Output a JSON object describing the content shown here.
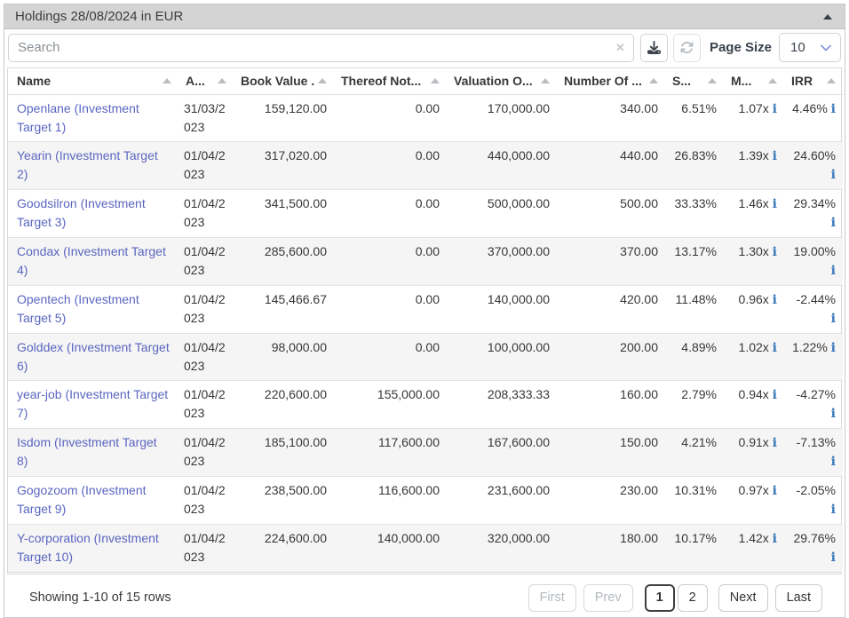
{
  "panel": {
    "title": "Holdings 28/08/2024 in EUR",
    "collapse_icon": "caret-up-icon"
  },
  "toolbar": {
    "search_placeholder": "Search",
    "search_value": "",
    "clear_glyph": "✕",
    "clear_icon": "clear-x-icon",
    "download_icon": "download-icon",
    "refresh_icon": "refresh-icon",
    "page_size_label": "Page Size",
    "page_size_value": "10",
    "page_size_chevron": "chevron-down-icon"
  },
  "table": {
    "sort_icon": "caret-up-icon",
    "info_glyph": "i",
    "columns": [
      {
        "label": "Name",
        "field": "name",
        "align": "left"
      },
      {
        "label": "A...",
        "field": "date",
        "align": "left"
      },
      {
        "label": "Book Value ...",
        "field": "book_value",
        "align": "right"
      },
      {
        "label": "Thereof Not...",
        "field": "thereof_not",
        "align": "right"
      },
      {
        "label": "Valuation O...",
        "field": "valuation",
        "align": "right"
      },
      {
        "label": "Number Of ...",
        "field": "number_of",
        "align": "right"
      },
      {
        "label": "S...",
        "field": "share",
        "align": "right"
      },
      {
        "label": "M...",
        "field": "multiple",
        "align": "right",
        "info_icon": true
      },
      {
        "label": "IRR",
        "field": "irr",
        "align": "right",
        "info_icon": true
      }
    ],
    "rows": [
      {
        "name": "Openlane (Investment Target 1)",
        "date": "31/03/2023",
        "book_value": "159,120.00",
        "thereof_not": "0.00",
        "valuation": "170,000.00",
        "number_of": "340.00",
        "share": "6.51%",
        "multiple": "1.07x",
        "irr": "4.46%"
      },
      {
        "name": "Yearin (Investment Target 2)",
        "date": "01/04/2023",
        "book_value": "317,020.00",
        "thereof_not": "0.00",
        "valuation": "440,000.00",
        "number_of": "440.00",
        "share": "26.83%",
        "multiple": "1.39x",
        "irr": "24.60%"
      },
      {
        "name": "Goodsilron (Investment Target 3)",
        "date": "01/04/2023",
        "book_value": "341,500.00",
        "thereof_not": "0.00",
        "valuation": "500,000.00",
        "number_of": "500.00",
        "share": "33.33%",
        "multiple": "1.46x",
        "irr": "29.34%"
      },
      {
        "name": "Condax (Investment Target 4)",
        "date": "01/04/2023",
        "book_value": "285,600.00",
        "thereof_not": "0.00",
        "valuation": "370,000.00",
        "number_of": "370.00",
        "share": "13.17%",
        "multiple": "1.30x",
        "irr": "19.00%"
      },
      {
        "name": "Opentech (Investment Target 5)",
        "date": "01/04/2023",
        "book_value": "145,466.67",
        "thereof_not": "0.00",
        "valuation": "140,000.00",
        "number_of": "420.00",
        "share": "11.48%",
        "multiple": "0.96x",
        "irr": "-2.44%"
      },
      {
        "name": "Golddex (Investment Target 6)",
        "date": "01/04/2023",
        "book_value": "98,000.00",
        "thereof_not": "0.00",
        "valuation": "100,000.00",
        "number_of": "200.00",
        "share": "4.89%",
        "multiple": "1.02x",
        "irr": "1.22%"
      },
      {
        "name": "year-job (Investment Target 7)",
        "date": "01/04/2023",
        "book_value": "220,600.00",
        "thereof_not": "155,000.00",
        "valuation": "208,333.33",
        "number_of": "160.00",
        "share": "2.79%",
        "multiple": "0.94x",
        "irr": "-4.27%"
      },
      {
        "name": "Isdom (Investment Target 8)",
        "date": "01/04/2023",
        "book_value": "185,100.00",
        "thereof_not": "117,600.00",
        "valuation": "167,600.00",
        "number_of": "150.00",
        "share": "4.21%",
        "multiple": "0.91x",
        "irr": "-7.13%"
      },
      {
        "name": "Gogozoom (Investment Target 9)",
        "date": "01/04/2023",
        "book_value": "238,500.00",
        "thereof_not": "116,600.00",
        "valuation": "231,600.00",
        "number_of": "230.00",
        "share": "10.31%",
        "multiple": "0.97x",
        "irr": "-2.05%"
      },
      {
        "name": "Y-corporation (Investment Target 10)",
        "date": "01/04/2023",
        "book_value": "224,600.00",
        "thereof_not": "140,000.00",
        "valuation": "320,000.00",
        "number_of": "180.00",
        "share": "10.17%",
        "multiple": "1.42x",
        "irr": "29.76%"
      }
    ]
  },
  "footer": {
    "summary": "Showing 1-10 of 15 rows",
    "pages": [
      {
        "label": "First",
        "state": "disabled"
      },
      {
        "label": "Prev",
        "state": "disabled"
      },
      {
        "label": "1",
        "state": "active"
      },
      {
        "label": "2",
        "state": "normal"
      },
      {
        "label": "Next",
        "state": "normal"
      },
      {
        "label": "Last",
        "state": "normal"
      }
    ]
  },
  "colors": {
    "link": "#5a66c0",
    "info_icon": "#3878bd",
    "panel_header_bg": "#d4d4d4",
    "stripe": "#f5f5f5"
  }
}
